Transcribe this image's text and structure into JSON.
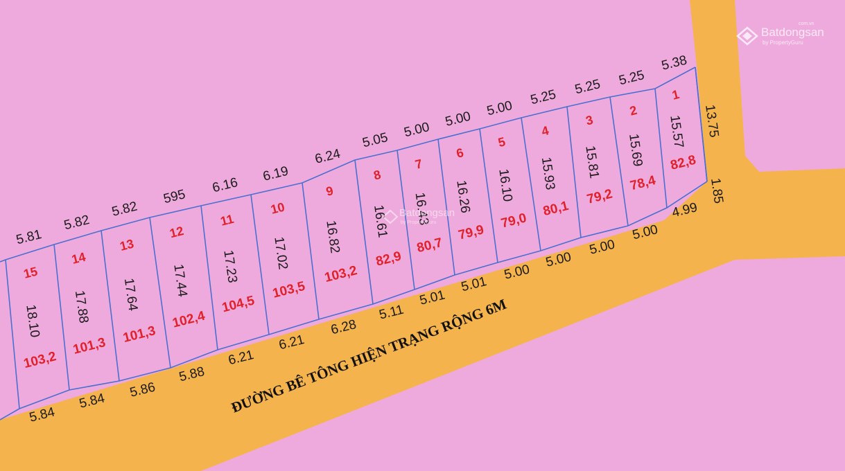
{
  "road_label": "ĐƯỜNG BÊ TÔNG HIỆN TRẠNG RỘNG 6M",
  "watermark": {
    "brand": "Batdongsan",
    "sub": "by PropertyGuru",
    "domain": "com.vn"
  },
  "colors": {
    "background": "#eeaadc",
    "road": "#f4b34c",
    "boundary": "#4a6fd0",
    "lot_text": "#e0202a"
  },
  "lots": [
    {
      "no": "15",
      "area": "103,2",
      "depth": "18.10",
      "top": "5.81",
      "bottom": "5.84"
    },
    {
      "no": "14",
      "area": "101,3",
      "depth": "17.88",
      "top": "5.82",
      "bottom": "5.84"
    },
    {
      "no": "13",
      "area": "101,3",
      "depth": "17.64",
      "top": "5.82",
      "bottom": "5.86"
    },
    {
      "no": "12",
      "area": "102,4",
      "depth": "17.44",
      "top": "595",
      "bottom": "5.88"
    },
    {
      "no": "11",
      "area": "104,5",
      "depth": "17.23",
      "top": "6.16",
      "bottom": "6.21"
    },
    {
      "no": "10",
      "area": "103,5",
      "depth": "17.02",
      "top": "6.19",
      "bottom": "6.21"
    },
    {
      "no": "9",
      "area": "103,2",
      "depth": "16.82",
      "top": "6.24",
      "bottom": "6.28"
    },
    {
      "no": "8",
      "area": "82,9",
      "depth": "16.61",
      "top": "5.05",
      "bottom": "5.11"
    },
    {
      "no": "7",
      "area": "80,7",
      "depth": "16.43",
      "top": "5.00",
      "bottom": "5.01"
    },
    {
      "no": "6",
      "area": "79,9",
      "depth": "16.26",
      "top": "5.00",
      "bottom": "5.01"
    },
    {
      "no": "5",
      "area": "79,0",
      "depth": "16.10",
      "top": "5.00",
      "bottom": "5.00"
    },
    {
      "no": "4",
      "area": "80,1",
      "depth": "15.93",
      "top": "5.25",
      "bottom": "5.00"
    },
    {
      "no": "3",
      "area": "79,2",
      "depth": "15.81",
      "top": "5.25",
      "bottom": "5.00"
    },
    {
      "no": "2",
      "area": "78,4",
      "depth": "15.69",
      "top": "5.25",
      "bottom": "5.00"
    },
    {
      "no": "1",
      "area": "82,8",
      "depth": "15.57",
      "top": "5.38",
      "bottom": "4.99"
    }
  ],
  "edge_right": "13.75",
  "corner_cut": "1.85"
}
